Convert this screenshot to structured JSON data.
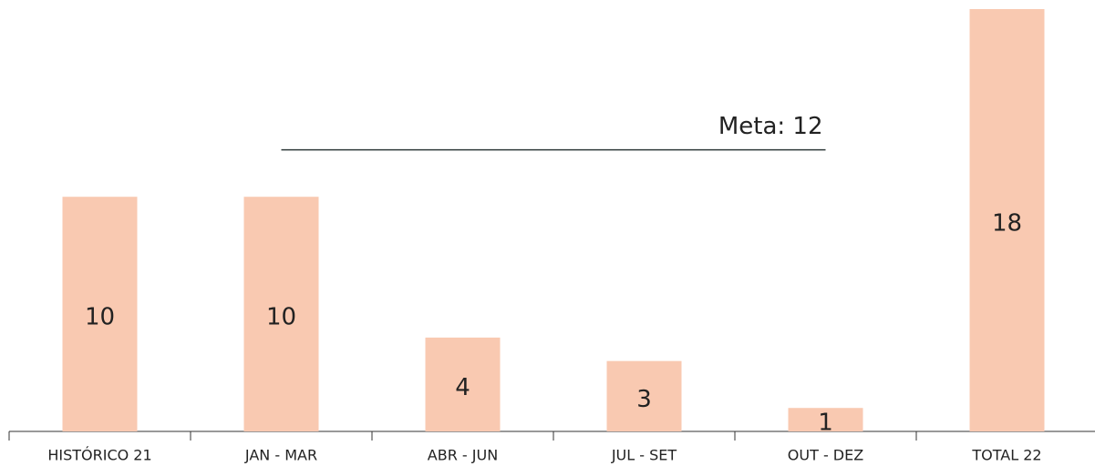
{
  "chart_data": {
    "type": "bar",
    "categories": [
      "HISTÓRICO 21",
      "JAN - MAR",
      "ABR - JUN",
      "JUL - SET",
      "OUT - DEZ",
      "TOTAL 22"
    ],
    "values": [
      10,
      10,
      4,
      3,
      1,
      18
    ],
    "color": "#f9c9b1",
    "ylim": [
      0,
      18
    ],
    "target": {
      "label": "Meta: 12",
      "value": 12
    }
  }
}
